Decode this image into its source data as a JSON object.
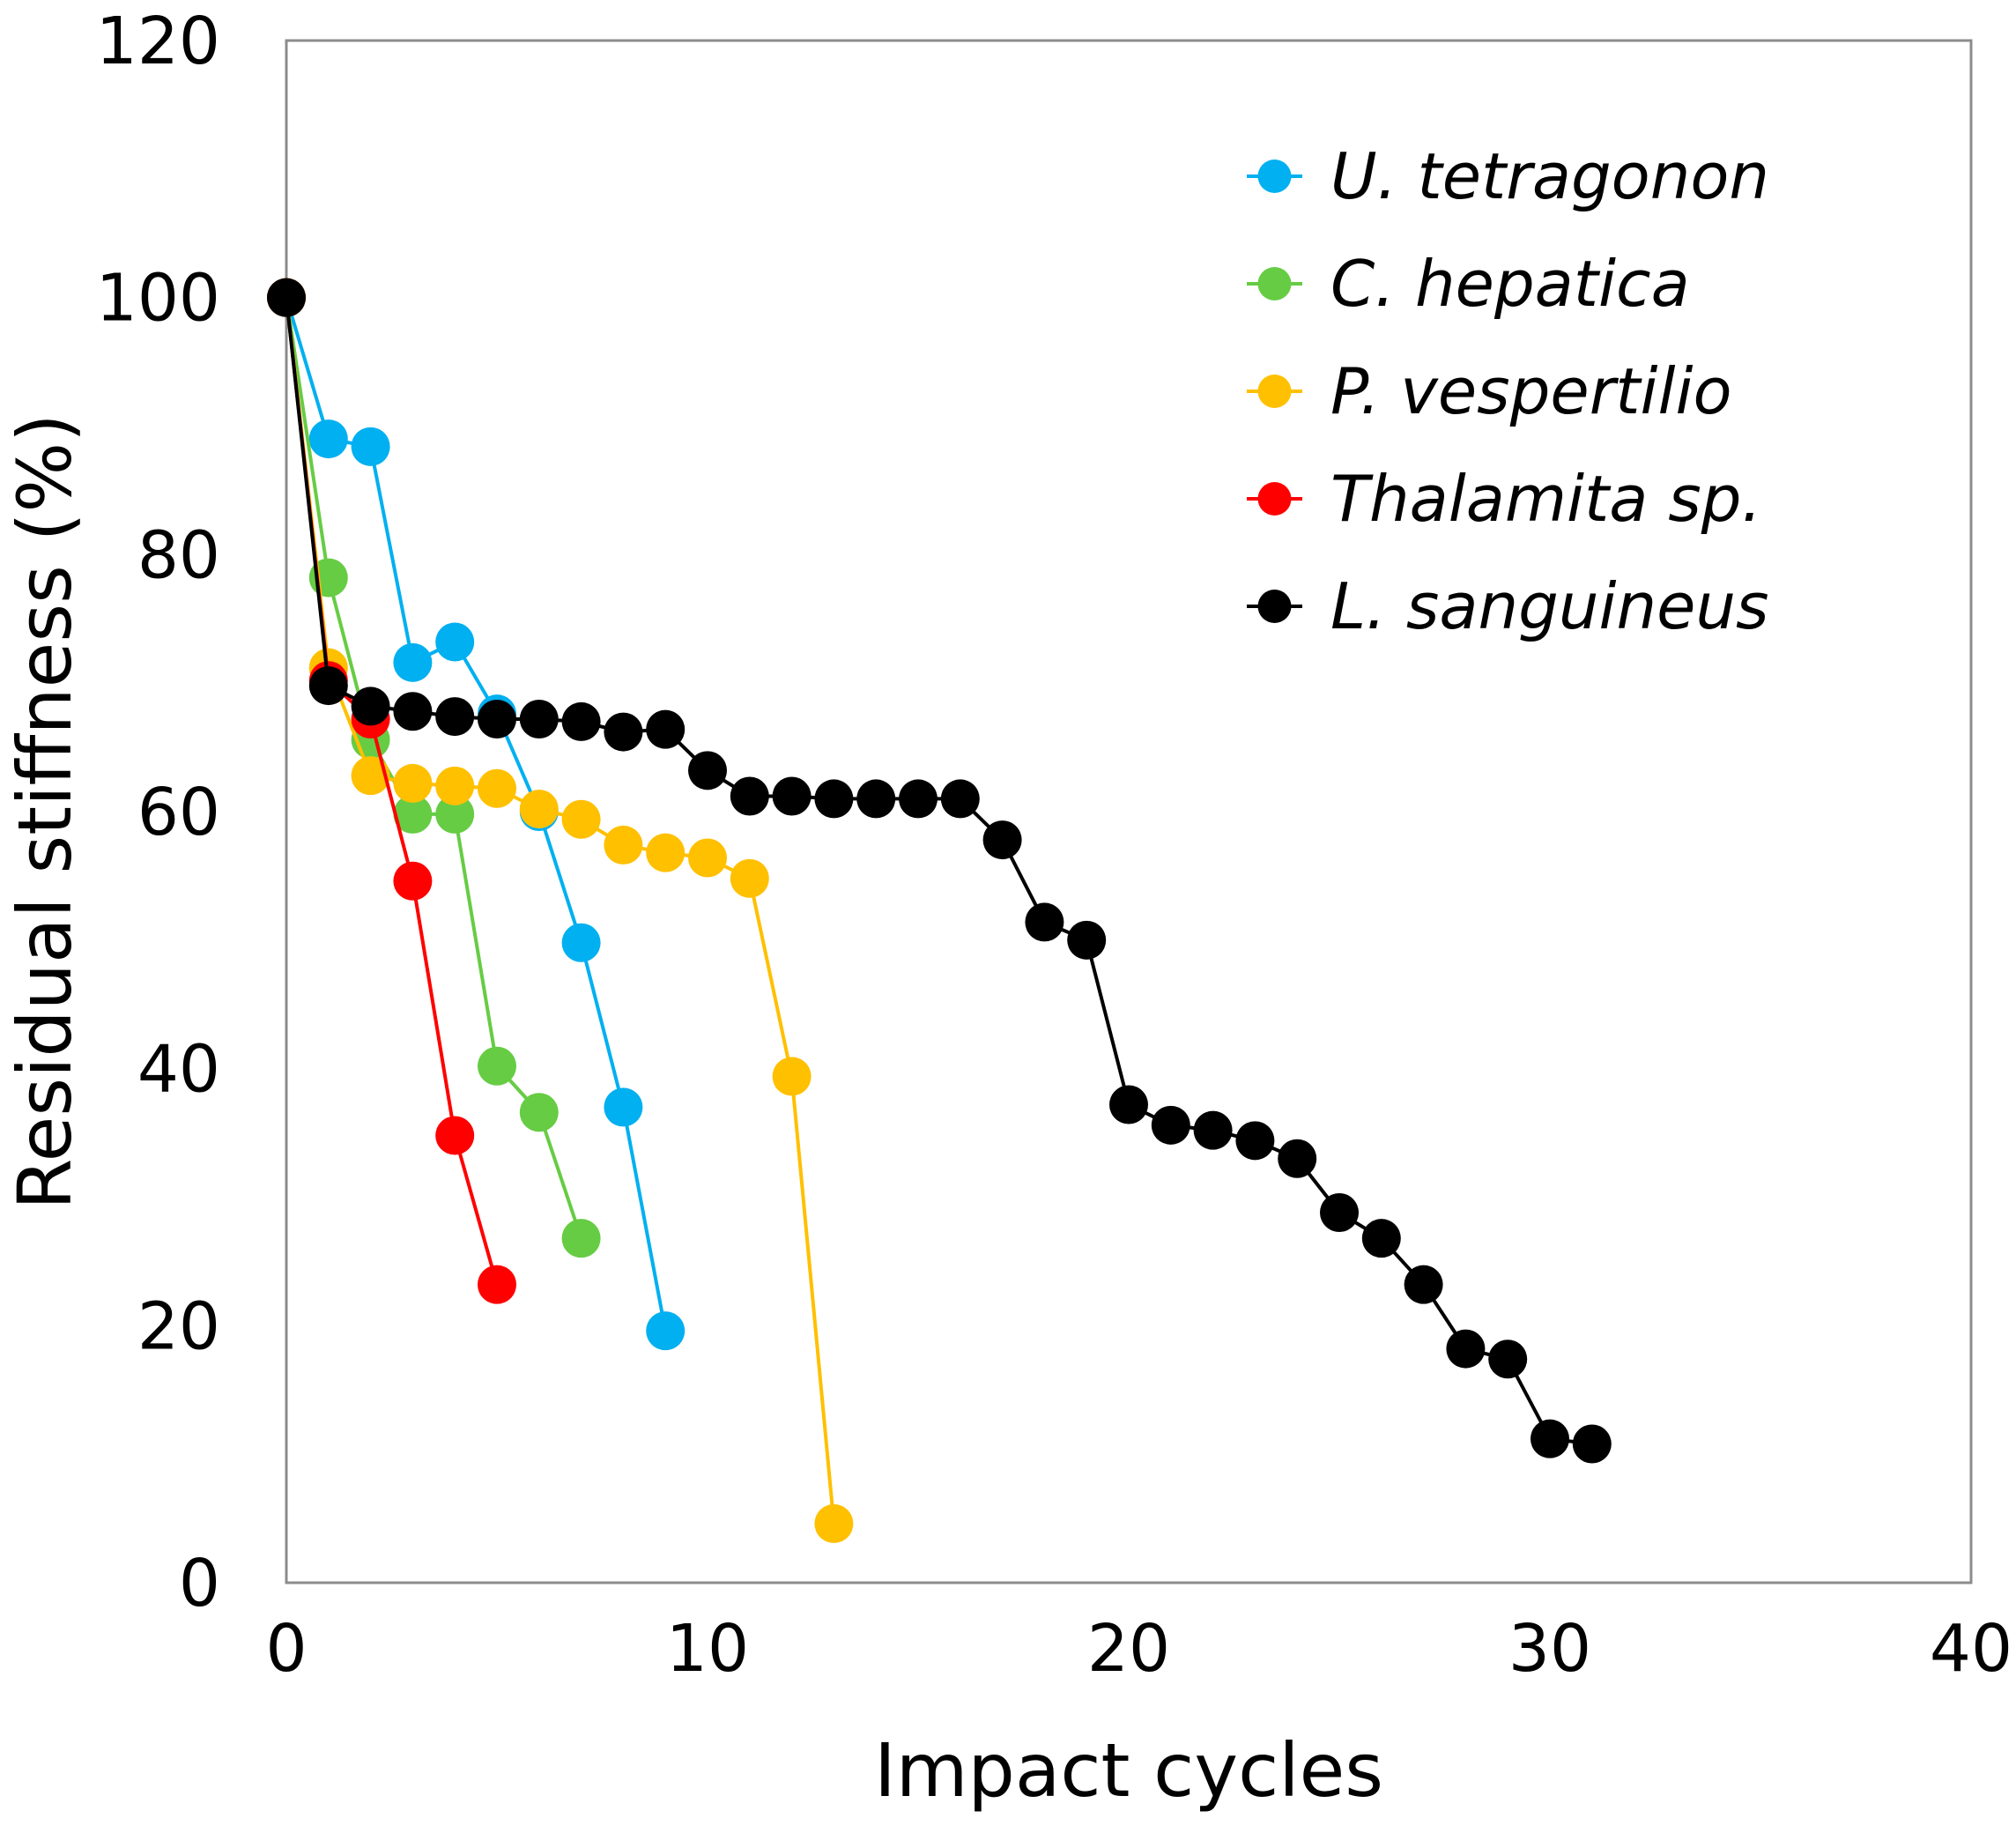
{
  "chart_data": {
    "type": "line",
    "title": "",
    "xlabel": "Impact cycles",
    "ylabel": "Residual stiffness (%)",
    "xlim": [
      0,
      40
    ],
    "ylim": [
      0,
      120
    ],
    "xticks": [
      0,
      10,
      20,
      30,
      40
    ],
    "yticks": [
      0,
      20,
      40,
      60,
      80,
      100,
      120
    ],
    "grid": false,
    "legend_position": "top-right",
    "series": [
      {
        "name": "U. tetragonon",
        "color": "#00b0f0",
        "x": [
          0,
          1,
          2,
          3,
          4,
          5,
          6,
          7,
          8,
          9
        ],
        "y": [
          100,
          89,
          88.4,
          71.6,
          73.2,
          67.6,
          60,
          49.8,
          37,
          19.6
        ]
      },
      {
        "name": "C. hepatica",
        "color": "#66cc44",
        "x": [
          0,
          1,
          2,
          3,
          4,
          5,
          6,
          7
        ],
        "y": [
          100,
          78.2,
          65.6,
          59.8,
          59.8,
          40.2,
          36.6,
          26.8
        ]
      },
      {
        "name": "P. vespertilio",
        "color": "#ffc000",
        "x": [
          0,
          1,
          2,
          3,
          4,
          5,
          6,
          7,
          8,
          9,
          10,
          11,
          12,
          13
        ],
        "y": [
          100,
          71.2,
          62.8,
          62.2,
          62,
          61.8,
          60.2,
          59.4,
          57.4,
          56.8,
          56.4,
          54.8,
          39.4,
          4.6
        ]
      },
      {
        "name": "Thalamita sp.",
        "color": "#ff0000",
        "x": [
          0,
          1,
          2,
          3,
          4,
          5
        ],
        "y": [
          100,
          70.2,
          67.2,
          54.6,
          34.8,
          23.2
        ]
      },
      {
        "name": "L. sanguineus",
        "color": "#000000",
        "x": [
          0,
          1,
          2,
          3,
          4,
          5,
          6,
          7,
          8,
          9,
          10,
          11,
          12,
          13,
          14,
          15,
          16,
          17,
          18,
          19,
          20,
          21,
          22,
          23,
          24,
          25,
          26,
          27,
          28,
          29,
          30,
          31
        ],
        "y": [
          100,
          69.8,
          68.2,
          67.8,
          67.4,
          67.2,
          67.2,
          67,
          66.2,
          66.4,
          63.2,
          61.2,
          61.2,
          61,
          61,
          61,
          61,
          57.8,
          51.4,
          50,
          37.2,
          35.6,
          35.2,
          34.4,
          33,
          28.8,
          26.8,
          23.2,
          18.2,
          17.4,
          11.2,
          10.8
        ]
      }
    ]
  }
}
